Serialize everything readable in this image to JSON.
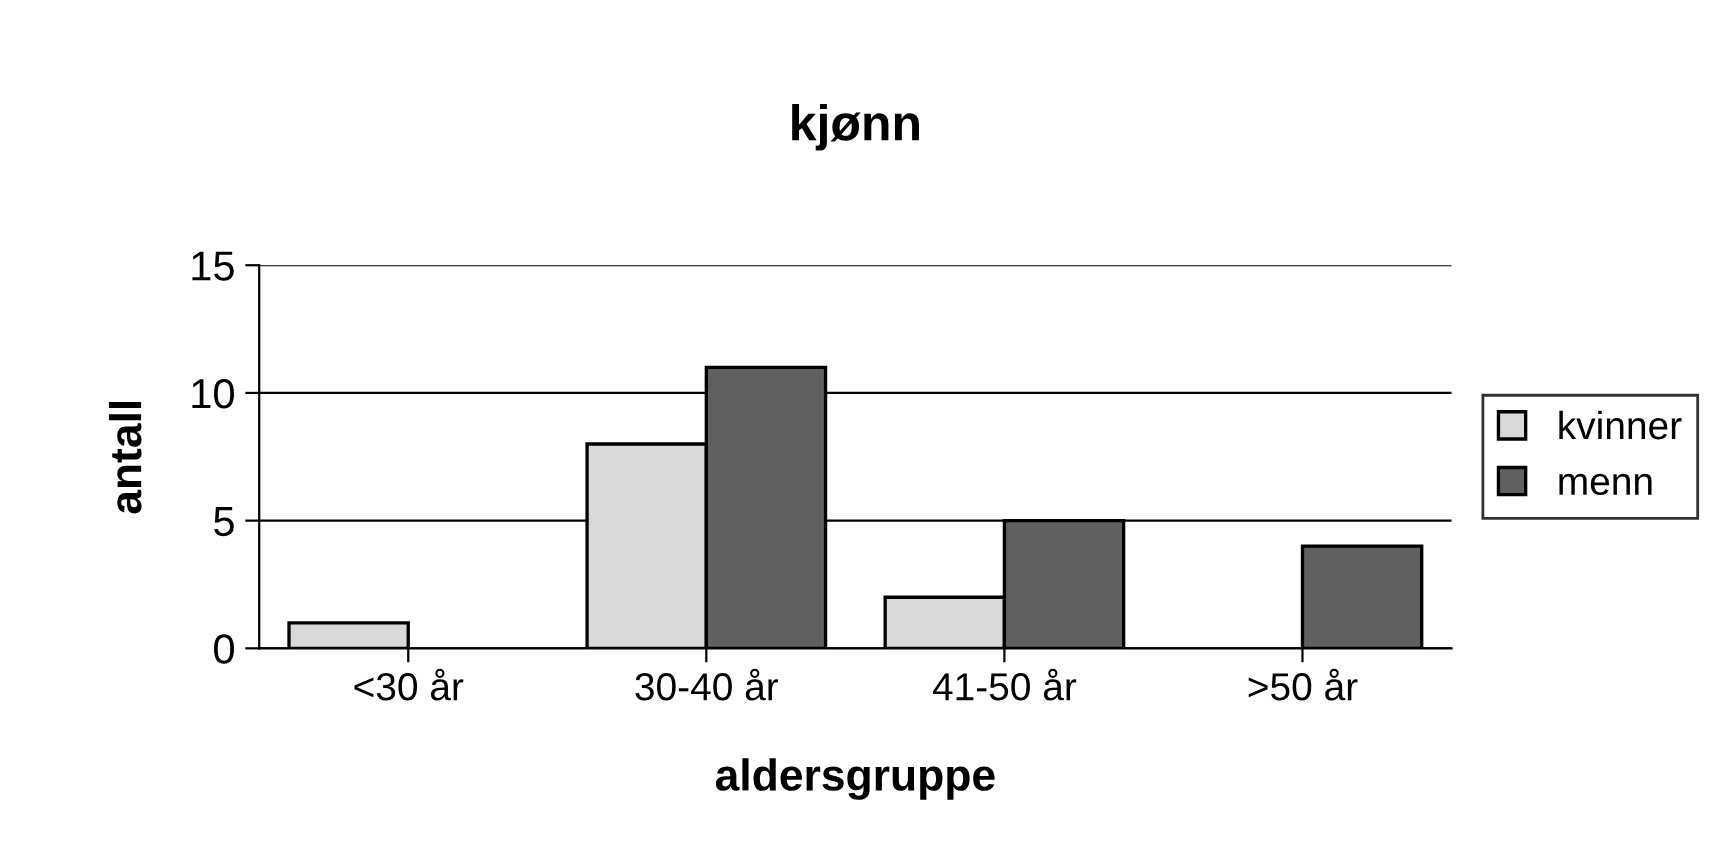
{
  "chart_data": {
    "type": "bar",
    "title": "kjønn",
    "xlabel": "aldersgruppe",
    "ylabel": "antall",
    "categories": [
      "<30 år",
      "30-40 år",
      "41-50 år",
      ">50 år"
    ],
    "series": [
      {
        "name": "kvinner",
        "color": "#d9d9d9",
        "values": [
          1,
          8,
          2,
          0
        ]
      },
      {
        "name": "menn",
        "color": "#606060",
        "values": [
          0,
          11,
          5,
          4
        ]
      }
    ],
    "ylim": [
      0,
      15
    ],
    "yticks": [
      0,
      5,
      10,
      15
    ],
    "grid": "y",
    "legend": "right"
  }
}
